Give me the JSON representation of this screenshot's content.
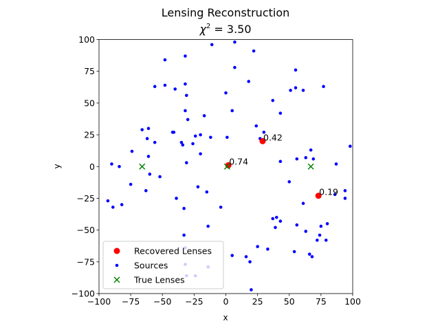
{
  "chart_data": {
    "type": "scatter",
    "title": "Lensing Reconstruction",
    "subtitle_prefix": "χ",
    "subtitle_sup": "2",
    "subtitle_suffix": " = 3.50",
    "xlabel": "x",
    "ylabel": "y",
    "xlim": [
      -100,
      100
    ],
    "ylim": [
      -100,
      100
    ],
    "xticks": [
      -100,
      -75,
      -50,
      -25,
      0,
      25,
      50,
      75,
      100
    ],
    "yticks": [
      -100,
      -75,
      -50,
      -25,
      0,
      25,
      50,
      75,
      100
    ],
    "xtick_labels": [
      "−100",
      "−75",
      "−50",
      "−25",
      "0",
      "25",
      "50",
      "75",
      "100"
    ],
    "ytick_labels": [
      "−100",
      "−75",
      "−50",
      "−25",
      "0",
      "25",
      "50",
      "75",
      "100"
    ],
    "grid": false,
    "legend_position": "bottom-left",
    "series": [
      {
        "name": "Recovered Lenses",
        "marker": "circle-large",
        "color": "#ff0000",
        "points": [
          {
            "x": 29,
            "y": 20,
            "label": "0.42"
          },
          {
            "x": 2,
            "y": 1,
            "label": "0.74"
          },
          {
            "x": 73,
            "y": -23,
            "label": "0.19"
          }
        ]
      },
      {
        "name": "Sources",
        "marker": "circle-small",
        "color": "#0000ff",
        "points": [
          {
            "x": 7,
            "y": 98
          },
          {
            "x": -11,
            "y": 96
          },
          {
            "x": 22,
            "y": 91
          },
          {
            "x": -32,
            "y": 87
          },
          {
            "x": -48,
            "y": 84
          },
          {
            "x": 7,
            "y": 78
          },
          {
            "x": 55,
            "y": 76
          },
          {
            "x": 18,
            "y": 67
          },
          {
            "x": -32,
            "y": 65
          },
          {
            "x": -48,
            "y": 64
          },
          {
            "x": -56,
            "y": 63
          },
          {
            "x": 77,
            "y": 63
          },
          {
            "x": -40,
            "y": 61
          },
          {
            "x": 55,
            "y": 62
          },
          {
            "x": 61,
            "y": 60
          },
          {
            "x": 51,
            "y": 60
          },
          {
            "x": 0,
            "y": 58
          },
          {
            "x": -31,
            "y": 56
          },
          {
            "x": 37,
            "y": 52
          },
          {
            "x": 5,
            "y": 44
          },
          {
            "x": -32,
            "y": 44
          },
          {
            "x": 43,
            "y": 42
          },
          {
            "x": -17,
            "y": 40
          },
          {
            "x": -30,
            "y": 37
          },
          {
            "x": 24,
            "y": 32
          },
          {
            "x": -61,
            "y": 30
          },
          {
            "x": -66,
            "y": 29
          },
          {
            "x": -42,
            "y": 27
          },
          {
            "x": -41,
            "y": 27
          },
          {
            "x": 30,
            "y": 27
          },
          {
            "x": -20,
            "y": 25
          },
          {
            "x": -24,
            "y": 24
          },
          {
            "x": -12,
            "y": 23
          },
          {
            "x": 1,
            "y": 23
          },
          {
            "x": 27,
            "y": 22
          },
          {
            "x": -62,
            "y": 22
          },
          {
            "x": -56,
            "y": 19
          },
          {
            "x": -35,
            "y": 19
          },
          {
            "x": -34,
            "y": 17
          },
          {
            "x": -26,
            "y": 18
          },
          {
            "x": 98,
            "y": 16
          },
          {
            "x": 67,
            "y": 13
          },
          {
            "x": -74,
            "y": 12
          },
          {
            "x": -20,
            "y": 10
          },
          {
            "x": -61,
            "y": 8
          },
          {
            "x": 63,
            "y": 7
          },
          {
            "x": 56,
            "y": 6
          },
          {
            "x": 69,
            "y": 6
          },
          {
            "x": 43,
            "y": 4
          },
          {
            "x": -31,
            "y": 3
          },
          {
            "x": 87,
            "y": 2
          },
          {
            "x": -90,
            "y": 2
          },
          {
            "x": -84,
            "y": 0
          },
          {
            "x": -60,
            "y": -6
          },
          {
            "x": -52,
            "y": -8
          },
          {
            "x": 50,
            "y": -12
          },
          {
            "x": -75,
            "y": -14
          },
          {
            "x": -22,
            "y": -16
          },
          {
            "x": -63,
            "y": -19
          },
          {
            "x": 94,
            "y": -19
          },
          {
            "x": -15,
            "y": -20
          },
          {
            "x": 86,
            "y": -22
          },
          {
            "x": -39,
            "y": -25
          },
          {
            "x": 94,
            "y": -25
          },
          {
            "x": -93,
            "y": -27
          },
          {
            "x": 61,
            "y": -29
          },
          {
            "x": -82,
            "y": -30
          },
          {
            "x": -4,
            "y": -32
          },
          {
            "x": -89,
            "y": -32
          },
          {
            "x": -33,
            "y": -33
          },
          {
            "x": 40,
            "y": -40
          },
          {
            "x": 37,
            "y": -41
          },
          {
            "x": 43,
            "y": -43
          },
          {
            "x": 80,
            "y": -45
          },
          {
            "x": 56,
            "y": -46
          },
          {
            "x": -14,
            "y": -47
          },
          {
            "x": 75,
            "y": -47
          },
          {
            "x": 39,
            "y": -48
          },
          {
            "x": 63,
            "y": -51
          },
          {
            "x": -33,
            "y": -54
          },
          {
            "x": 74,
            "y": -54
          },
          {
            "x": 72,
            "y": -58
          },
          {
            "x": 79,
            "y": -58
          },
          {
            "x": 25,
            "y": -63
          },
          {
            "x": 33,
            "y": -65
          },
          {
            "x": 54,
            "y": -67
          },
          {
            "x": -32,
            "y": -64
          },
          {
            "x": 66,
            "y": -69
          },
          {
            "x": 5,
            "y": -70
          },
          {
            "x": 16,
            "y": -71
          },
          {
            "x": 68,
            "y": -71
          },
          {
            "x": 19,
            "y": -75
          },
          {
            "x": -32,
            "y": -77
          },
          {
            "x": -14,
            "y": -79
          },
          {
            "x": -31,
            "y": -86
          },
          {
            "x": -24,
            "y": -86
          },
          {
            "x": 20,
            "y": -97
          }
        ]
      },
      {
        "name": "True Lenses",
        "marker": "x",
        "color": "#008000",
        "points": [
          {
            "x": -66,
            "y": 0
          },
          {
            "x": 1,
            "y": 0
          },
          {
            "x": 67,
            "y": 0
          }
        ]
      }
    ]
  }
}
